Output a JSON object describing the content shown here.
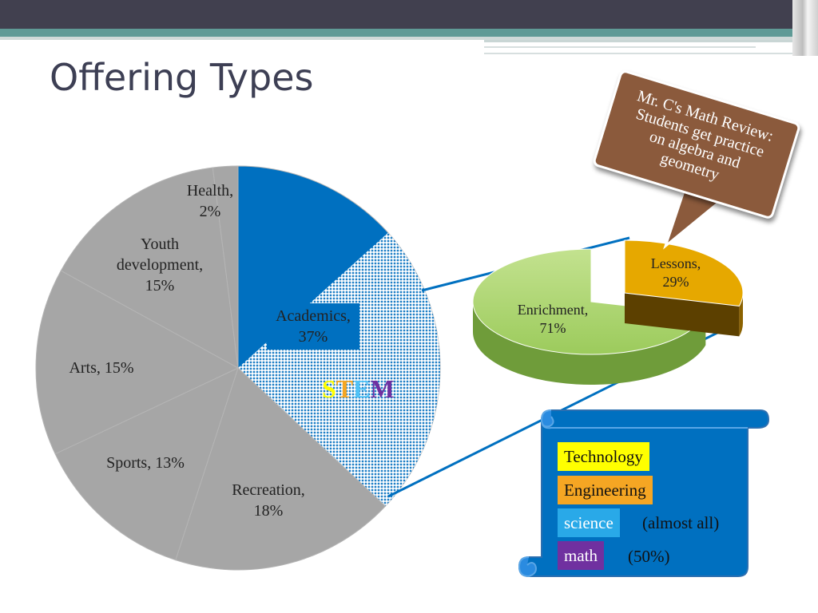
{
  "slide": {
    "title": "Offering Types"
  },
  "chart_data": [
    {
      "type": "pie",
      "title": "",
      "slices": [
        {
          "label": "Academics",
          "value": 37,
          "display": [
            "Academics,",
            "37%"
          ],
          "color": "#0070c0"
        },
        {
          "label": "Recreation",
          "value": 18,
          "display": [
            "Recreation,",
            "18%"
          ],
          "color": "#a6a6a6"
        },
        {
          "label": "Sports",
          "value": 13,
          "display": [
            "Sports, 13%"
          ],
          "color": "#a6a6a6"
        },
        {
          "label": "Arts",
          "value": 15,
          "display": [
            "Arts, 15%"
          ],
          "color": "#a6a6a6"
        },
        {
          "label": "Youth development",
          "value": 15,
          "display": [
            "Youth",
            "development,",
            "15%"
          ],
          "color": "#a6a6a6"
        },
        {
          "label": "Health",
          "value": 2,
          "display": [
            "Health,",
            "2%"
          ],
          "color": "#a6a6a6"
        }
      ],
      "stem_label": [
        "S",
        "T",
        "E",
        "M"
      ],
      "stem_colors": [
        "#ffff00",
        "#f5a623",
        "#4fc3f7",
        "#7030a0"
      ]
    },
    {
      "type": "pie",
      "title": "",
      "style": "3d-exploded",
      "slices": [
        {
          "label": "Enrichment",
          "value": 71,
          "display": [
            "Enrichment,",
            "71%"
          ],
          "color": "#a9d46f"
        },
        {
          "label": "Lessons",
          "value": 29,
          "display": [
            "Lessons,",
            "29%"
          ],
          "color": "#e6a800"
        }
      ]
    }
  ],
  "callout": {
    "lines": [
      "Mr. C's Math Review:",
      "Students get practice",
      "on algebra and",
      "geometry"
    ],
    "color": "#8b5a3c"
  },
  "stem_scroll": {
    "items": [
      {
        "label": "Technology",
        "bg": "#ffff00",
        "fg": "#111111"
      },
      {
        "label": "Engineering",
        "bg": "#f5a623",
        "fg": "#111111"
      },
      {
        "label": "science",
        "bg": "#29a9e8",
        "fg": "#ffffff",
        "note": "(almost all)"
      },
      {
        "label": "math",
        "bg": "#7030a0",
        "fg": "#ffffff",
        "note": "(50%)"
      }
    ],
    "color": "#0070c0"
  }
}
